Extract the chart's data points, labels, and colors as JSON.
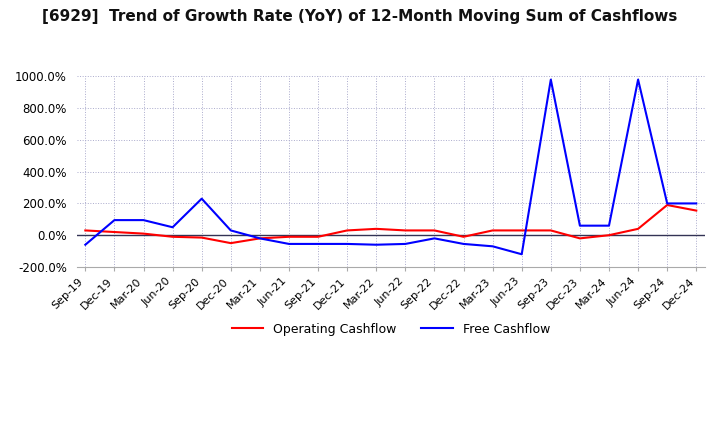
{
  "title": "[6929]  Trend of Growth Rate (YoY) of 12-Month Moving Sum of Cashflows",
  "title_fontsize": 11,
  "ylim": [
    -200,
    1000
  ],
  "yticks": [
    -200,
    0,
    200,
    400,
    600,
    800,
    1000
  ],
  "ytick_labels": [
    "-200.0%",
    "0.0%",
    "200.0%",
    "400.0%",
    "600.0%",
    "800.0%",
    "1000.0%"
  ],
  "operating_color": "#FF0000",
  "free_color": "#0000FF",
  "background_color": "#FFFFFF",
  "grid_color": "#AAAACC",
  "x_labels": [
    "Sep-19",
    "Dec-19",
    "Mar-20",
    "Jun-20",
    "Sep-20",
    "Dec-20",
    "Mar-21",
    "Jun-21",
    "Sep-21",
    "Dec-21",
    "Mar-22",
    "Jun-22",
    "Sep-22",
    "Dec-22",
    "Mar-23",
    "Jun-23",
    "Sep-23",
    "Dec-23",
    "Mar-24",
    "Jun-24",
    "Sep-24",
    "Dec-24"
  ],
  "operating_cashflow": [
    30,
    20,
    10,
    -10,
    -15,
    -50,
    -20,
    -10,
    -10,
    30,
    40,
    30,
    30,
    -10,
    30,
    30,
    30,
    -20,
    0,
    40,
    190,
    155
  ],
  "free_cashflow": [
    -60,
    95,
    95,
    50,
    230,
    30,
    -20,
    -55,
    -55,
    -55,
    -60,
    -55,
    -20,
    -55,
    -70,
    -120,
    980,
    60,
    60,
    980,
    200,
    200
  ]
}
